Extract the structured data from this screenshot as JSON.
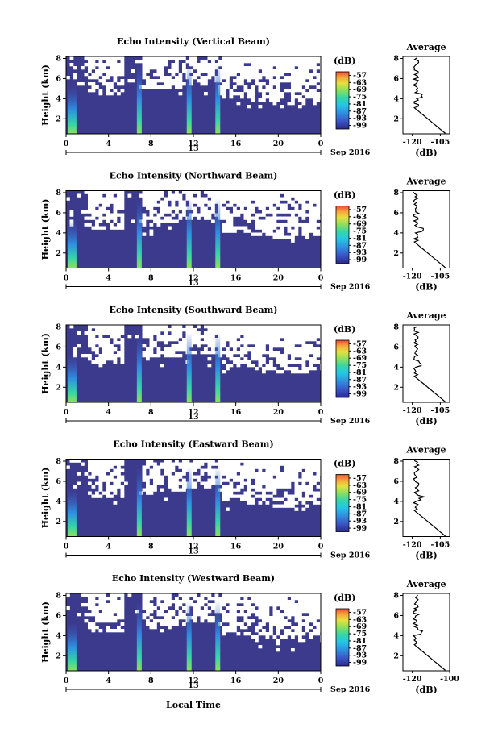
{
  "figure": {
    "xaxis_label": "Local Time",
    "date_label": "Sep 2016",
    "y_label": "Height (km)",
    "colorbar_unit": "(dB)",
    "avg_title": "Average",
    "avg_xlabel": "(dB)"
  },
  "chart_data": [
    {
      "type": "heatmap",
      "title": "Echo Intensity (Vertical Beam)",
      "ylabel": "Height (km)",
      "x_ticks": [
        "0",
        "4",
        "8",
        "12",
        "16",
        "20",
        "0"
      ],
      "x_date_tick": "13",
      "y_ticks": [
        "2",
        "4",
        "6",
        "8"
      ],
      "xlim_hours": [
        0,
        24
      ],
      "ylim_km": [
        0.5,
        8.2
      ],
      "colorbar_ticks": [
        "-57",
        "-63",
        "-69",
        "-75",
        "-81",
        "-87",
        "-93",
        "-99"
      ],
      "colorbar_range_db": [
        -102,
        -54
      ],
      "echo_columns_hours": [
        0.6,
        6.9,
        11.6,
        14.3
      ],
      "average": {
        "title": "Average",
        "xlabel": "(dB)",
        "xticks": [
          "-120",
          "-105"
        ],
        "yticks": [
          "2",
          "4",
          "6",
          "8"
        ]
      }
    },
    {
      "type": "heatmap",
      "title": "Echo Intensity (Northward Beam)",
      "ylabel": "Height (km)",
      "x_ticks": [
        "0",
        "4",
        "8",
        "12",
        "16",
        "20",
        "0"
      ],
      "x_date_tick": "13",
      "y_ticks": [
        "2",
        "4",
        "6",
        "8"
      ],
      "xlim_hours": [
        0,
        24
      ],
      "ylim_km": [
        0.5,
        8.2
      ],
      "colorbar_ticks": [
        "-57",
        "-63",
        "-69",
        "-75",
        "-81",
        "-87",
        "-93",
        "-99"
      ],
      "colorbar_range_db": [
        -102,
        -54
      ],
      "echo_columns_hours": [
        0.6,
        6.9,
        11.6,
        14.3
      ],
      "average": {
        "title": "Average",
        "xlabel": "(dB)",
        "xticks": [
          "-120",
          "-105"
        ],
        "yticks": [
          "2",
          "4",
          "6",
          "8"
        ]
      }
    },
    {
      "type": "heatmap",
      "title": "Echo Intensity (Southward Beam)",
      "ylabel": "Height (km)",
      "x_ticks": [
        "0",
        "4",
        "8",
        "12",
        "16",
        "20",
        "0"
      ],
      "x_date_tick": "13",
      "y_ticks": [
        "2",
        "4",
        "6",
        "8"
      ],
      "xlim_hours": [
        0,
        24
      ],
      "ylim_km": [
        0.5,
        8.2
      ],
      "colorbar_ticks": [
        "-57",
        "-63",
        "-69",
        "-75",
        "-81",
        "-87",
        "-93",
        "-99"
      ],
      "colorbar_range_db": [
        -102,
        -54
      ],
      "echo_columns_hours": [
        0.6,
        6.9,
        11.6,
        14.3
      ],
      "average": {
        "title": "Average",
        "xlabel": "(dB)",
        "xticks": [
          "-120",
          "-105"
        ],
        "yticks": [
          "2",
          "4",
          "6",
          "8"
        ]
      }
    },
    {
      "type": "heatmap",
      "title": "Echo Intensity (Eastward Beam)",
      "ylabel": "Height (km)",
      "x_ticks": [
        "0",
        "4",
        "8",
        "12",
        "16",
        "20",
        "0"
      ],
      "x_date_tick": "13",
      "y_ticks": [
        "2",
        "4",
        "6",
        "8"
      ],
      "xlim_hours": [
        0,
        24
      ],
      "ylim_km": [
        0.5,
        8.2
      ],
      "colorbar_ticks": [
        "-57",
        "-63",
        "-69",
        "-75",
        "-81",
        "-87",
        "-93",
        "-99"
      ],
      "colorbar_range_db": [
        -102,
        -54
      ],
      "echo_columns_hours": [
        0.6,
        6.9,
        11.6,
        14.3
      ],
      "average": {
        "title": "Average",
        "xlabel": "(dB)",
        "xticks": [
          "-120",
          "-105"
        ],
        "yticks": [
          "2",
          "4",
          "6",
          "8"
        ]
      }
    },
    {
      "type": "heatmap",
      "title": "Echo Intensity (Westward Beam)",
      "ylabel": "Height (km)",
      "x_ticks": [
        "0",
        "4",
        "8",
        "12",
        "16",
        "20",
        "0"
      ],
      "x_date_tick": "13",
      "y_ticks": [
        "2",
        "4",
        "6",
        "8"
      ],
      "xlim_hours": [
        0,
        24
      ],
      "ylim_km": [
        0.5,
        8.2
      ],
      "colorbar_ticks": [
        "-57",
        "-63",
        "-69",
        "-75",
        "-81",
        "-87",
        "-93",
        "-99"
      ],
      "colorbar_range_db": [
        -102,
        -54
      ],
      "echo_columns_hours": [
        0.6,
        6.9,
        11.6,
        14.3
      ],
      "average": {
        "title": "Average",
        "xlabel": "(dB)",
        "xticks": [
          "-120",
          "-100"
        ],
        "yticks": [
          "2",
          "4",
          "6",
          "8"
        ]
      }
    }
  ],
  "colors": {
    "background_echo": "#3c3a8c",
    "colormap": [
      "#2a2a8a",
      "#3b55c8",
      "#2f8fe0",
      "#25c6e6",
      "#35d6a8",
      "#8fe05a",
      "#e6e040",
      "#f5a83a",
      "#ee4a3a"
    ]
  }
}
